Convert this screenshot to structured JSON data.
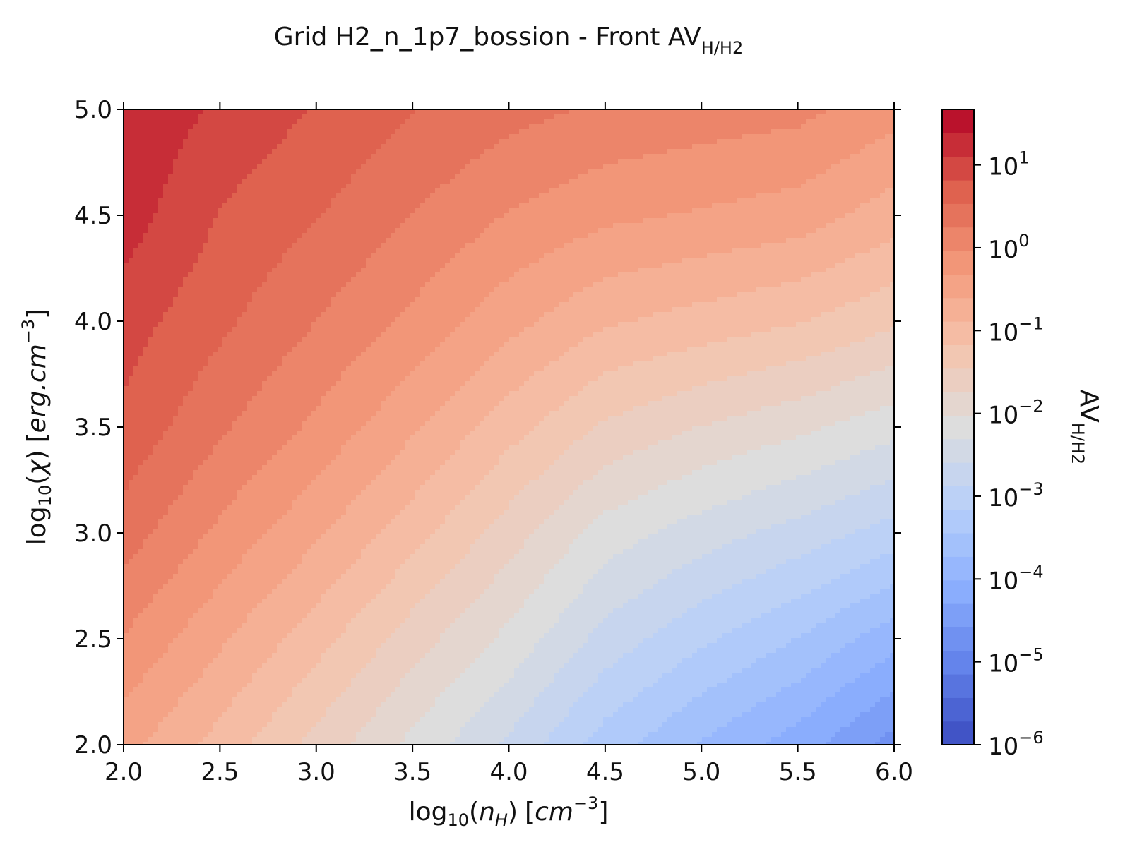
{
  "chart_data": {
    "type": "heatmap",
    "title": {
      "main": "Grid H2_n_1p7_bossion - Front AV",
      "subscript": "H/H2"
    },
    "xlabel": {
      "prefix": "log",
      "log_sub": "10",
      "paren_open": "(",
      "var": "n",
      "var_sub": "H",
      "paren_close": ")",
      "units_open": "[",
      "units": "cm",
      "units_sup": "−3",
      "units_close": "]"
    },
    "ylabel": {
      "prefix": "log",
      "log_sub": "10",
      "paren_open": "(",
      "var": "χ",
      "paren_close": ")",
      "units_open": "[",
      "units": "erg.cm",
      "units_sup": "−3",
      "units_close": "]"
    },
    "xlim": [
      2.0,
      6.0
    ],
    "ylim": [
      2.0,
      5.0
    ],
    "xticks": [
      "2.0",
      "2.5",
      "3.0",
      "3.5",
      "4.0",
      "4.5",
      "5.0",
      "5.5",
      "6.0"
    ],
    "yticks": [
      "2.0",
      "2.5",
      "3.0",
      "3.5",
      "4.0",
      "4.5",
      "5.0"
    ],
    "colorbar": {
      "label": "AV",
      "label_subscript": "H/H2",
      "scale": "log",
      "range_log10": [
        -6,
        1.67
      ],
      "tick_base": "10",
      "ticks_exponents": [
        "−6",
        "−5",
        "−4",
        "−3",
        "−2",
        "−1",
        "0",
        "1"
      ],
      "colormap": "coolwarm",
      "levels": 27
    },
    "x": [
      2.0,
      2.5,
      3.0,
      3.5,
      4.0,
      4.5,
      5.0,
      5.5,
      6.0
    ],
    "y": [
      2.0,
      2.5,
      3.0,
      3.5,
      4.0,
      4.5,
      5.0
    ],
    "z_log10": [
      [
        -0.5,
        -1.0,
        -1.55,
        -2.1,
        -2.65,
        -3.3,
        -3.75,
        -4.15,
        -4.7
      ],
      [
        -0.05,
        -0.55,
        -1.05,
        -1.6,
        -2.1,
        -2.7,
        -3.1,
        -3.45,
        -3.9
      ],
      [
        0.4,
        -0.1,
        -0.55,
        -1.05,
        -1.6,
        -2.15,
        -2.45,
        -2.7,
        -3.0
      ],
      [
        0.75,
        0.3,
        -0.1,
        -0.55,
        -1.05,
        -1.5,
        -1.75,
        -1.95,
        -2.2
      ],
      [
        0.95,
        0.6,
        0.25,
        -0.1,
        -0.5,
        -0.85,
        -1.0,
        -1.15,
        -1.4
      ],
      [
        1.25,
        0.8,
        0.55,
        0.25,
        -0.05,
        -0.25,
        -0.35,
        -0.45,
        -0.75
      ],
      [
        1.35,
        1.05,
        0.8,
        0.55,
        0.35,
        0.2,
        0.12,
        0.05,
        -0.2
      ]
    ]
  }
}
